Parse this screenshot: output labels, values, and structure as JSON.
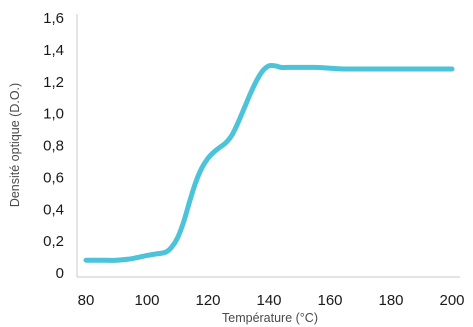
{
  "chart_data": {
    "type": "line",
    "title": "",
    "xlabel": "Température (°C)",
    "ylabel": "Densité optique (D.O.)",
    "xlim": [
      80,
      200
    ],
    "ylim": [
      0,
      1.6
    ],
    "x_ticks": [
      "80",
      "100",
      "120",
      "140",
      "160",
      "180",
      "200"
    ],
    "y_ticks": [
      "0",
      "0,2",
      "0,4",
      "0,6",
      "0,8",
      "1,0",
      "1,2",
      "1,4",
      "1,6"
    ],
    "grid": false,
    "legend": "none",
    "series": [
      {
        "color": "#4cc3d9",
        "x": [
          80,
          85,
          90,
          95,
          100,
          103,
          106,
          108,
          110,
          112,
          114,
          116,
          118,
          120,
          122,
          124,
          126,
          128,
          130,
          132,
          134,
          136,
          138,
          140,
          142,
          144,
          146,
          150,
          155,
          160,
          165,
          170,
          175,
          180,
          185,
          190,
          195,
          200
        ],
        "y": [
          0.08,
          0.08,
          0.08,
          0.09,
          0.11,
          0.12,
          0.13,
          0.16,
          0.22,
          0.32,
          0.45,
          0.57,
          0.66,
          0.72,
          0.76,
          0.79,
          0.82,
          0.87,
          0.95,
          1.04,
          1.13,
          1.21,
          1.27,
          1.3,
          1.3,
          1.29,
          1.29,
          1.29,
          1.29,
          1.285,
          1.28,
          1.28,
          1.28,
          1.28,
          1.28,
          1.28,
          1.28,
          1.28
        ]
      }
    ]
  }
}
